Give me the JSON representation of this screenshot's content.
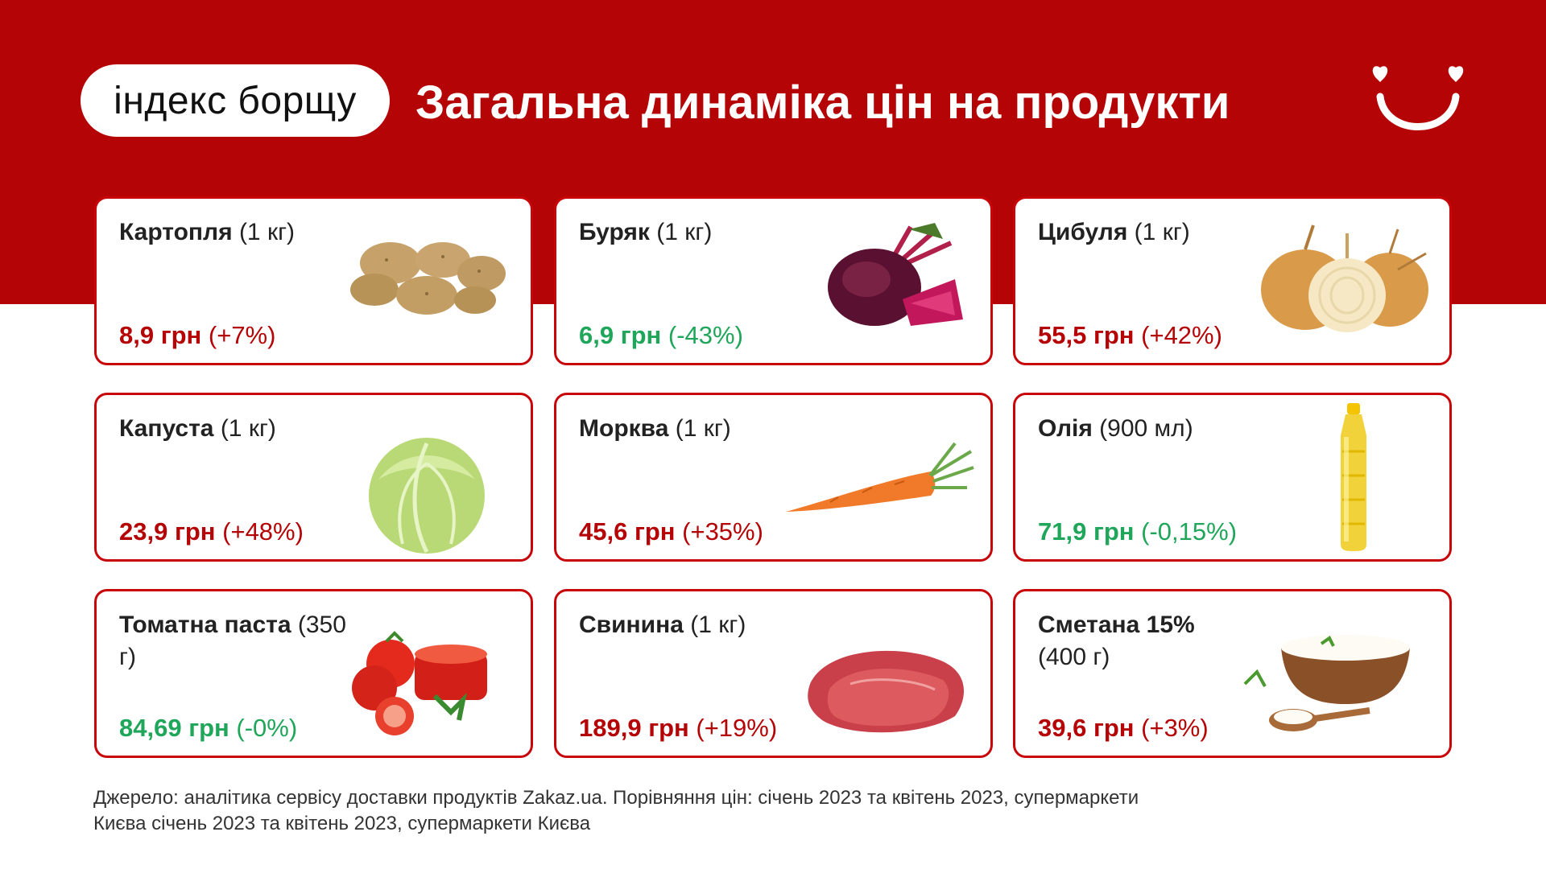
{
  "header": {
    "badge": "індекс борщу",
    "title": "Загальна динаміка цін на продукти"
  },
  "colors": {
    "brand_red": "#b50406",
    "increase": "#b50406",
    "decrease": "#1fa65a"
  },
  "products": [
    {
      "name": "Картопля",
      "qty": " (1 кг)",
      "price": "8,9 грн",
      "change": " (+7%)",
      "trend": "up",
      "icon": "potato-icon"
    },
    {
      "name": "Буряк",
      "qty": " (1 кг)",
      "price": "6,9 грн",
      "change": " (-43%)",
      "trend": "down",
      "icon": "beet-icon"
    },
    {
      "name": "Цибуля",
      "qty": " (1 кг)",
      "price": "55,5 грн",
      "change": " (+42%)",
      "trend": "up",
      "icon": "onion-icon"
    },
    {
      "name": "Капуста",
      "qty": " (1 кг)",
      "price": "23,9 грн",
      "change": " (+48%)",
      "trend": "up",
      "icon": "cabbage-icon"
    },
    {
      "name": "Морква",
      "qty": " (1 кг)",
      "price": "45,6 грн",
      "change": " (+35%)",
      "trend": "up",
      "icon": "carrot-icon"
    },
    {
      "name": "Олія",
      "qty": " (900 мл)",
      "price": "71,9 грн",
      "change": " (-0,15%)",
      "trend": "down",
      "icon": "oil-bottle-icon"
    },
    {
      "name": "Томатна паста",
      "qty": " (350 г)",
      "price": "84,69 грн",
      "change": " (-0%)",
      "trend": "down",
      "icon": "tomato-paste-icon"
    },
    {
      "name": "Свинина",
      "qty": " (1 кг)",
      "price": "189,9 грн",
      "change": " (+19%)",
      "trend": "up",
      "icon": "pork-icon"
    },
    {
      "name": "Сметана 15%",
      "qty": "(400 г)",
      "price": "39,6 грн",
      "change": " (+3%)",
      "trend": "up",
      "icon": "sour-cream-icon"
    }
  ],
  "footer": {
    "source": "Джерело: аналітика сервісу доставки продуктів Zakaz.ua.  Порівняння цін: січень 2023 та квітень 2023, супермаркети Києва січень 2023 та квітень 2023, супермаркети Києва"
  }
}
